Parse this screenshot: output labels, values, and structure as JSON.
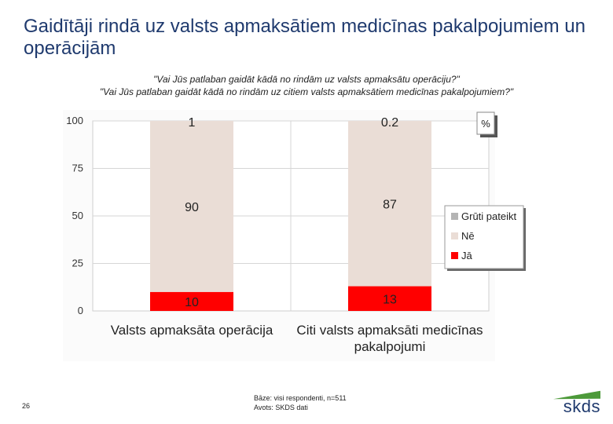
{
  "title": "Gaidītāji rindā uz valsts apmaksātiem medicīnas pakalpojumiem un operācijām",
  "questions": [
    "\"Vai Jūs patlaban gaidāt kādā no rindām uz valsts apmaksātu operāciju?\"",
    "\"Vai Jūs patlaban gaidāt kādā no rindām uz citiem valsts apmaksātiem medicīnas pakalpojumiem?\""
  ],
  "chart_data": {
    "type": "bar",
    "stacked": true,
    "categories": [
      [
        "Valsts apmaksāta operācija"
      ],
      [
        "Citi valsts apmaksāti medicīnas",
        "pakalpojumi"
      ]
    ],
    "series": [
      {
        "name": "Jā",
        "color": "#ff0000",
        "values": [
          10,
          13
        ]
      },
      {
        "name": "Nē",
        "color": "#eaddd6",
        "values": [
          90,
          87
        ]
      },
      {
        "name": "Grūti pateikt",
        "color": "#b4b4b4",
        "values": [
          1,
          0.2
        ]
      }
    ],
    "ylim": [
      0,
      100
    ],
    "yticks": [
      0,
      25,
      50,
      75,
      100
    ],
    "unit_label": "%",
    "grid": true,
    "legend": "right"
  },
  "footer": {
    "page_number": "26",
    "base": "Bāze: visi respondenti, n=511",
    "source": "Avots: SKDS dati"
  },
  "logo_text": "skds",
  "colors": {
    "title": "#1f3a6e",
    "logo_accent": "#4d9a3a"
  }
}
